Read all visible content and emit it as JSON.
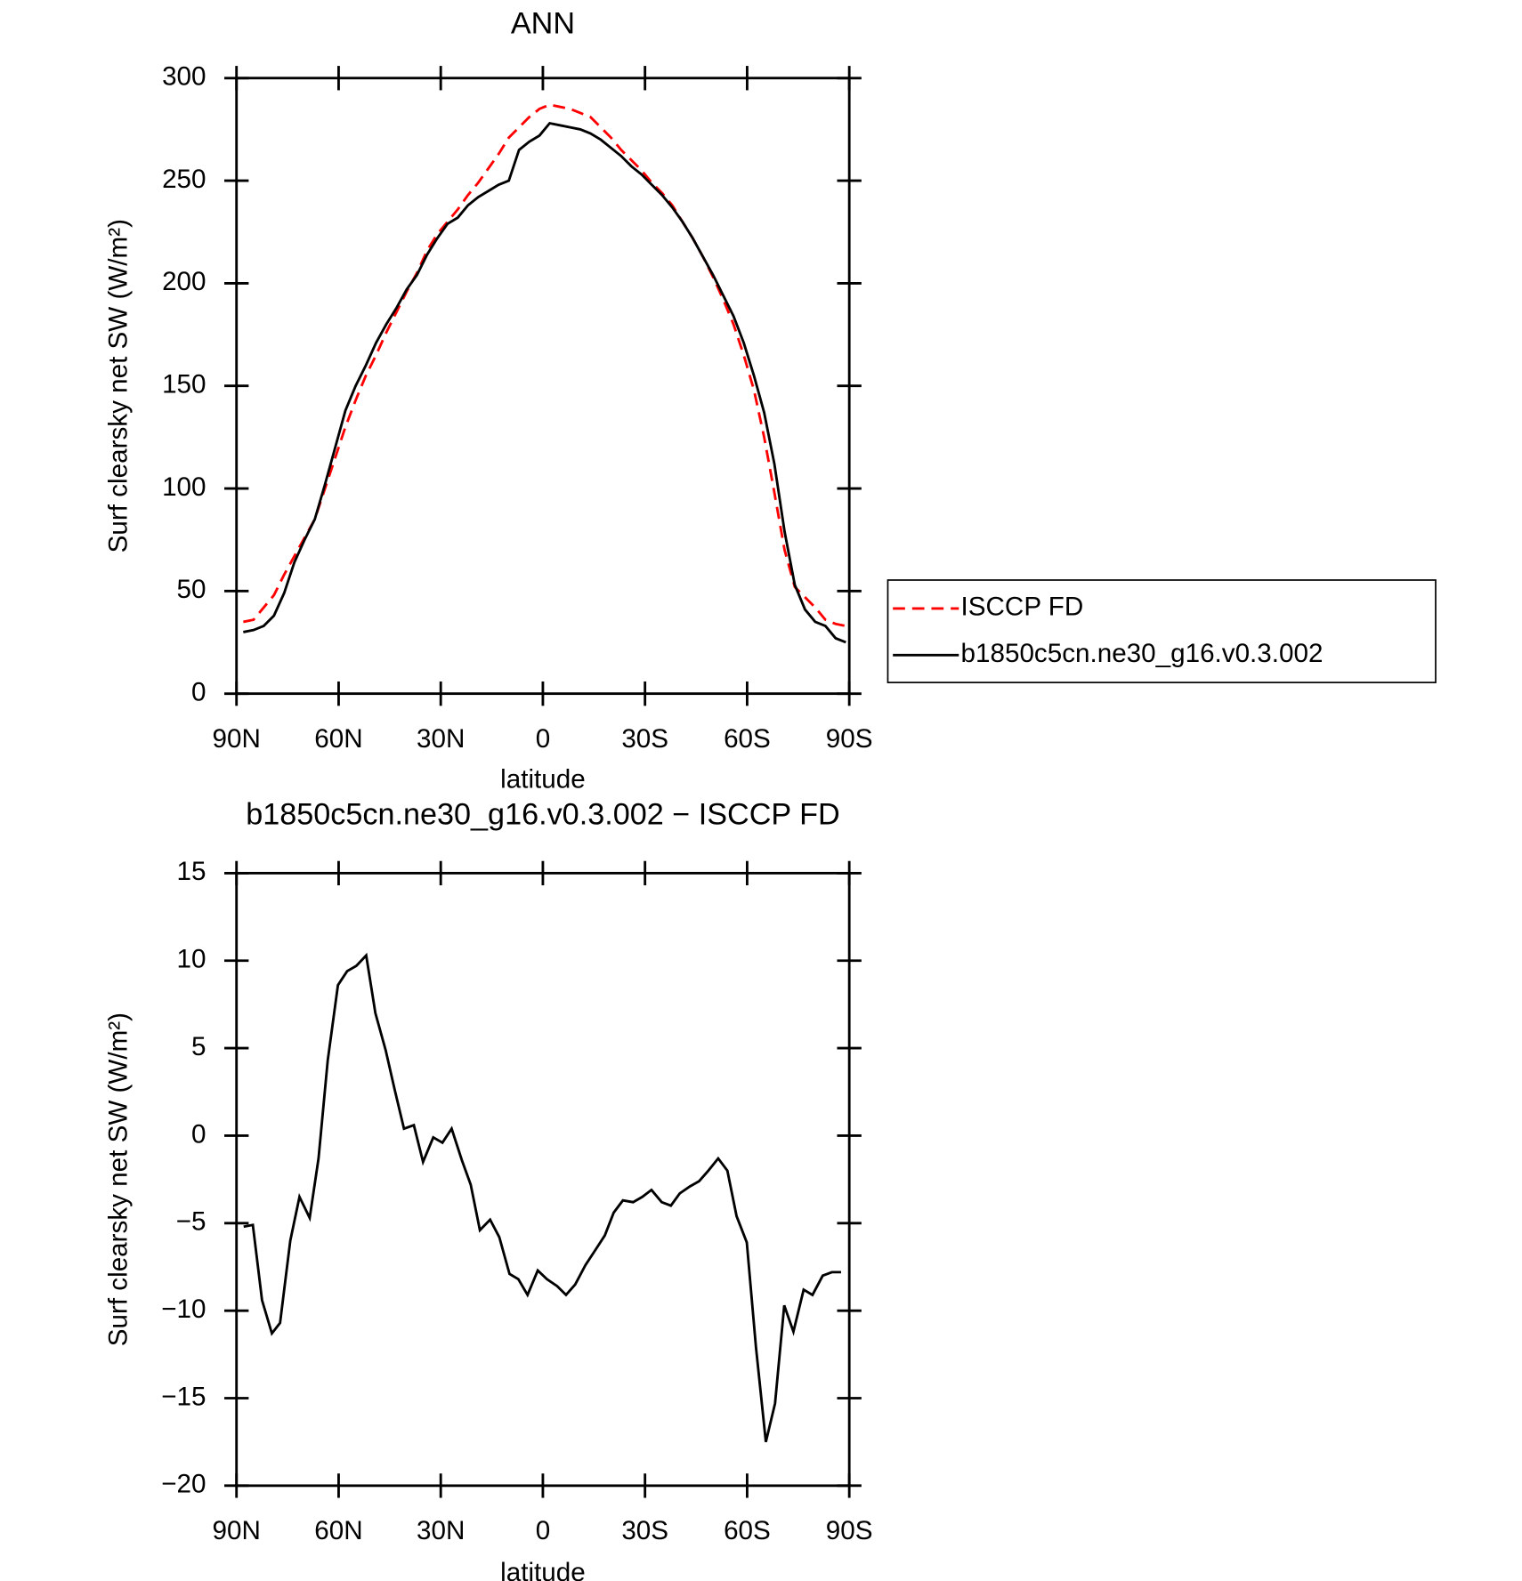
{
  "chart_data": [
    {
      "type": "line",
      "title": "ANN",
      "xlabel": "latitude",
      "ylabel": "Surf clearsky net SW (W/m²)",
      "xlim": [
        90,
        -90
      ],
      "xticks": [
        {
          "value": 90,
          "label": "90N"
        },
        {
          "value": 60,
          "label": "60N"
        },
        {
          "value": 30,
          "label": "30N"
        },
        0,
        {
          "value": -30,
          "label": "30S"
        },
        {
          "value": -60,
          "label": "60S"
        },
        {
          "value": -90,
          "label": "90S"
        }
      ],
      "ylim": [
        0,
        300
      ],
      "yticks": [
        0,
        50,
        100,
        150,
        200,
        250,
        300
      ],
      "legend": "right",
      "x": [
        88,
        85,
        82,
        79,
        76,
        73,
        70,
        67,
        64,
        61,
        58,
        55,
        52,
        49,
        46,
        43,
        40,
        37,
        34,
        31,
        28,
        25,
        22,
        19,
        16,
        13,
        10,
        7,
        4,
        1,
        -2,
        -5,
        -8,
        -11,
        -14,
        -17,
        -20,
        -23,
        -26,
        -29,
        -32,
        -35,
        -38,
        -41,
        -44,
        -47,
        -50,
        -53,
        -56,
        -59,
        -62,
        -65,
        -68,
        -71,
        -74,
        -77,
        -80,
        -83,
        -86,
        -89
      ],
      "series": [
        {
          "name": "ISCCP FD",
          "color": "#ff0000",
          "dashed": true,
          "values": [
            35,
            36,
            42,
            48,
            58,
            67,
            76,
            85,
            100,
            115,
            130,
            143,
            155,
            165,
            176,
            186,
            196,
            205,
            216,
            224,
            230,
            236,
            243,
            249,
            256,
            263,
            271,
            276,
            281,
            285,
            287,
            286,
            285,
            283,
            281,
            276,
            271,
            265,
            260,
            255,
            249,
            244,
            238,
            230,
            222,
            213,
            203,
            192,
            180,
            165,
            148,
            125,
            98,
            70,
            52,
            47,
            42,
            36,
            34,
            33
          ]
        },
        {
          "name": "b1850c5cn.ne30_g16.v0.3.002",
          "color": "#000000",
          "dashed": false,
          "values": [
            30,
            31,
            33,
            38,
            49,
            64,
            75,
            85,
            102,
            120,
            138,
            150,
            160,
            171,
            180,
            188,
            197,
            204,
            214,
            222,
            229,
            232,
            238,
            242,
            245,
            248,
            250,
            265,
            269,
            272,
            278,
            277,
            276,
            275,
            273,
            270,
            266,
            262,
            257,
            253,
            248,
            243,
            237,
            230,
            222,
            213,
            204,
            194,
            184,
            171,
            155,
            137,
            112,
            79,
            53,
            41,
            35,
            33,
            27,
            25
          ]
        }
      ]
    },
    {
      "type": "line",
      "title": "b1850c5cn.ne30_g16.v0.3.002 − ISCCP FD",
      "xlabel": "latitude",
      "ylabel": "Surf clearsky net SW (W/m²)",
      "xlim": [
        90,
        -90
      ],
      "xticks": [
        {
          "value": 90,
          "label": "90N"
        },
        {
          "value": 60,
          "label": "60N"
        },
        {
          "value": 30,
          "label": "30N"
        },
        0,
        {
          "value": -30,
          "label": "30S"
        },
        {
          "value": -60,
          "label": "60S"
        },
        {
          "value": -90,
          "label": "90S"
        }
      ],
      "ylim": [
        -20,
        15
      ],
      "yticks": [
        15,
        10,
        5,
        0,
        {
          "value": -5,
          "label": "−5"
        },
        {
          "value": -10,
          "label": "−10"
        },
        {
          "value": -15,
          "label": "−15"
        },
        {
          "value": -20,
          "label": "−20"
        }
      ],
      "x": [
        87.9,
        85.2,
        82.5,
        79.6,
        77.2,
        74.2,
        71.5,
        68.5,
        65.9,
        63.2,
        60.2,
        57.5,
        54.8,
        51.9,
        49.2,
        46.2,
        43.5,
        40.8,
        37.9,
        35.2,
        32.2,
        29.5,
        26.8,
        23.8,
        21.2,
        18.5,
        15.5,
        12.8,
        9.8,
        7.2,
        4.5,
        1.5,
        -1.2,
        -4.2,
        -6.8,
        -9.5,
        -12.5,
        -15.2,
        -18.2,
        -20.8,
        -23.5,
        -26.5,
        -29.2,
        -31.9,
        -34.9,
        -37.6,
        -40.2,
        -43.2,
        -45.9,
        -48.6,
        -51.5,
        -54.2,
        -56.9,
        -59.9,
        -62.6,
        -65.5,
        -68.2,
        -70.9,
        -73.6,
        -76.6,
        -79.2,
        -82.2,
        -84.9,
        -87.6
      ],
      "color": "#000000",
      "values": [
        -5.2,
        -5.1,
        -9.4,
        -11.3,
        -10.7,
        -6,
        -3.5,
        -4.7,
        -1.3,
        4.3,
        8.6,
        9.4,
        9.7,
        10.3,
        7,
        4.9,
        2.6,
        0.4,
        0.6,
        -1.5,
        -0.1,
        -0.4,
        0.4,
        -1.4,
        -2.8,
        -5.4,
        -4.8,
        -5.8,
        -7.9,
        -8.2,
        -9.1,
        -7.7,
        -8.2,
        -8.6,
        -9.1,
        -8.5,
        -7.4,
        -6.6,
        -5.7,
        -4.4,
        -3.7,
        -3.8,
        -3.5,
        -3.1,
        -3.8,
        -4,
        -3.3,
        -2.9,
        -2.6,
        -2,
        -1.3,
        -2,
        -4.6,
        -6.1,
        -12.1,
        -17.5,
        -15.3,
        -9.7,
        -11.2,
        -8.8,
        -9.1,
        -8,
        -7.8,
        -7.8
      ]
    }
  ]
}
